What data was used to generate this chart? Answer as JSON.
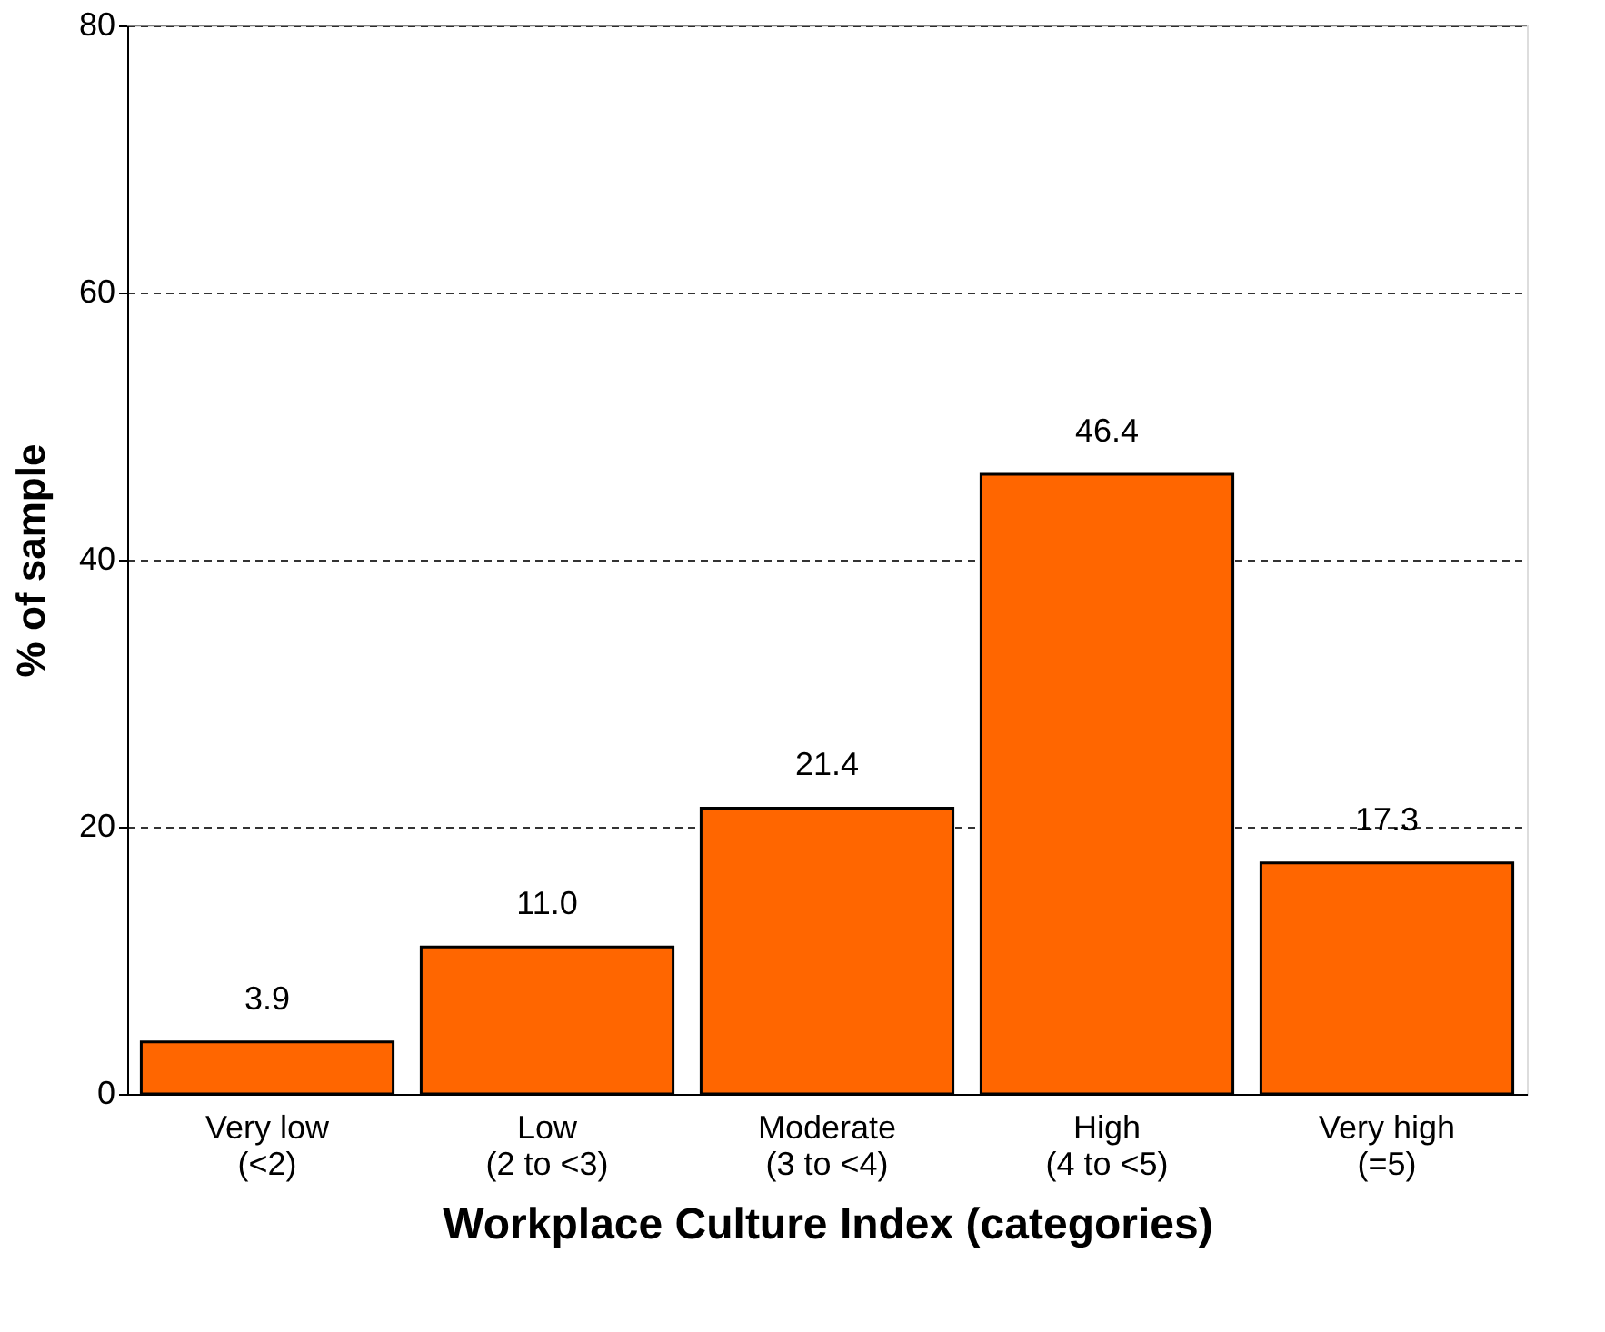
{
  "chart_data": {
    "type": "bar",
    "xlabel": "Workplace Culture Index (categories)",
    "ylabel": "% of sample",
    "categories": [
      "Very low\n(<2)",
      "Low\n(2 to <3)",
      "Moderate\n(3 to <4)",
      "High\n(4 to <5)",
      "Very high\n(=5)"
    ],
    "values": [
      3.9,
      11.0,
      21.4,
      46.4,
      17.3
    ],
    "value_labels": [
      "3.9",
      "11.0",
      "21.4",
      "46.4",
      "17.3"
    ],
    "color": "#ff6600",
    "ylim": [
      0,
      80
    ],
    "yticks": [
      0,
      20,
      40,
      60,
      80
    ],
    "grid": "y"
  }
}
